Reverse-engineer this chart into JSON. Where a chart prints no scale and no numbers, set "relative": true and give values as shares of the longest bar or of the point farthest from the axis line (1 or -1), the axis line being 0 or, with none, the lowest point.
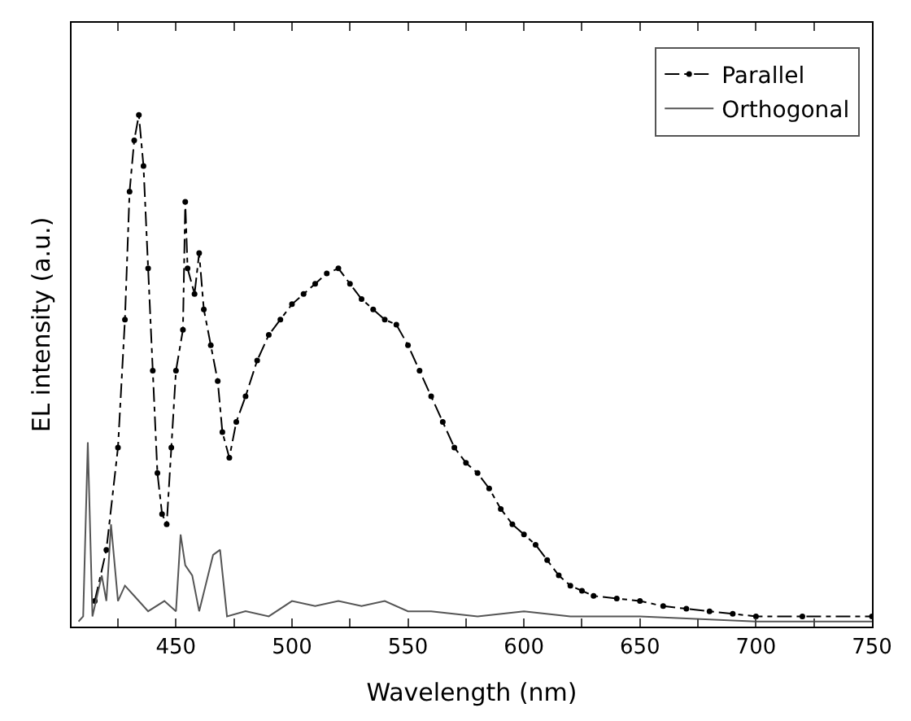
{
  "chart_data": {
    "type": "line",
    "xlabel": "Wavelength (nm)",
    "ylabel": "EL intensity (a.u.)",
    "relative": true,
    "xlim": [
      405,
      750
    ],
    "xticks": [
      {
        "value": 425,
        "label": null
      },
      450,
      {
        "value": 475,
        "label": null
      },
      500,
      {
        "value": 525,
        "label": null
      },
      550,
      {
        "value": 575,
        "label": null
      },
      600,
      {
        "value": 625,
        "label": null
      },
      650,
      {
        "value": 675,
        "label": null
      },
      700,
      {
        "value": 725,
        "label": null
      },
      750
    ],
    "tick_labels": "x",
    "legend": "top right",
    "series": [
      {
        "name": "Parallel",
        "color": "#000000",
        "marker": "circle",
        "line_style": "dashed",
        "x": [
          415,
          420,
          425,
          428,
          430,
          432,
          434,
          436,
          438,
          440,
          442,
          444,
          446,
          448,
          450,
          453,
          454,
          455,
          458,
          460,
          462,
          465,
          468,
          470,
          473,
          476,
          480,
          485,
          490,
          495,
          500,
          505,
          510,
          515,
          520,
          525,
          530,
          535,
          540,
          545,
          550,
          555,
          560,
          565,
          570,
          575,
          580,
          585,
          590,
          595,
          600,
          605,
          610,
          615,
          620,
          625,
          630,
          640,
          650,
          660,
          670,
          680,
          690,
          700,
          720,
          750
        ],
        "values": [
          0.05,
          0.15,
          0.35,
          0.6,
          0.85,
          0.95,
          1.0,
          0.9,
          0.7,
          0.5,
          0.3,
          0.22,
          0.2,
          0.35,
          0.5,
          0.58,
          0.83,
          0.7,
          0.65,
          0.73,
          0.62,
          0.55,
          0.48,
          0.38,
          0.33,
          0.4,
          0.45,
          0.52,
          0.57,
          0.6,
          0.63,
          0.65,
          0.67,
          0.69,
          0.7,
          0.67,
          0.64,
          0.62,
          0.6,
          0.59,
          0.55,
          0.5,
          0.45,
          0.4,
          0.35,
          0.32,
          0.3,
          0.27,
          0.23,
          0.2,
          0.18,
          0.16,
          0.13,
          0.1,
          0.08,
          0.07,
          0.06,
          0.055,
          0.05,
          0.04,
          0.035,
          0.03,
          0.025,
          0.02,
          0.02,
          0.02
        ]
      },
      {
        "name": "Orthogonal",
        "color": "#555555",
        "marker": "none",
        "line_style": "solid",
        "x": [
          408,
          410,
          412,
          414,
          418,
          420,
          422,
          425,
          428,
          432,
          438,
          445,
          450,
          452,
          454,
          457,
          460,
          466,
          469,
          472,
          480,
          490,
          500,
          510,
          520,
          530,
          540,
          550,
          560,
          580,
          600,
          620,
          650,
          700,
          750
        ],
        "values": [
          0.01,
          0.02,
          0.36,
          0.02,
          0.1,
          0.05,
          0.2,
          0.05,
          0.08,
          0.06,
          0.03,
          0.05,
          0.03,
          0.18,
          0.12,
          0.1,
          0.03,
          0.14,
          0.15,
          0.02,
          0.03,
          0.02,
          0.05,
          0.04,
          0.05,
          0.04,
          0.05,
          0.03,
          0.03,
          0.02,
          0.03,
          0.02,
          0.02,
          0.01,
          0.01
        ]
      }
    ]
  }
}
